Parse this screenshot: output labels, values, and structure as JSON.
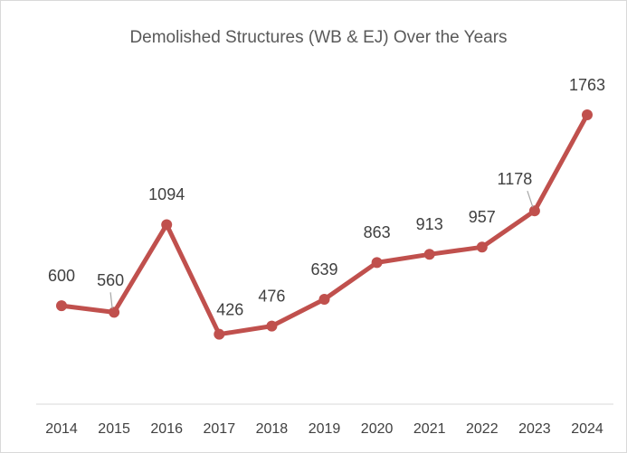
{
  "chart_data": {
    "type": "line",
    "title": "Demolished Structures (WB & EJ) Over the Years",
    "categories": [
      "2014",
      "2015",
      "2016",
      "2017",
      "2018",
      "2019",
      "2020",
      "2021",
      "2022",
      "2023",
      "2024"
    ],
    "values": [
      600,
      560,
      1094,
      426,
      476,
      639,
      863,
      913,
      957,
      1178,
      1763
    ],
    "color": "#c0504d",
    "ylim": [
      0,
      2000
    ]
  }
}
